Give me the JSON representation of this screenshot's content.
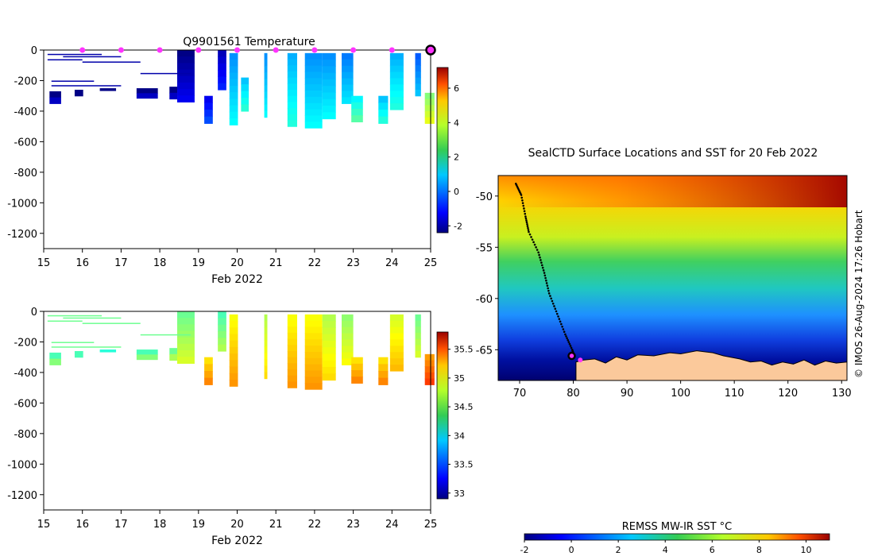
{
  "chart_data": [
    {
      "type": "heatmap",
      "title": "Q9901561  Temperature",
      "xlabel": "Feb 2022",
      "ylabel": "",
      "xlim": [
        15,
        25
      ],
      "ylim": [
        -1300,
        0
      ],
      "x_ticks": [
        15,
        16,
        17,
        18,
        19,
        20,
        21,
        22,
        23,
        24,
        25
      ],
      "y_ticks": [
        0,
        -200,
        -400,
        -600,
        -800,
        -1000,
        -1200
      ],
      "colorbar": {
        "min": -2.4,
        "max": 7.2,
        "ticks": [
          -2,
          0,
          2,
          4,
          6
        ],
        "colormap": "jet"
      },
      "surface_markers": [
        16,
        17,
        18,
        19,
        20,
        21,
        22,
        23,
        24
      ],
      "current_marker": 25,
      "profiles": [
        {
          "x": 15.15,
          "w": 0.3,
          "bottom": -350,
          "top": -270,
          "value": -2.0
        },
        {
          "x": 15.8,
          "w": 0.22,
          "bottom": -300,
          "top": -260,
          "value": -2.0
        },
        {
          "x": 16.45,
          "w": 0.42,
          "bottom": -265,
          "top": -250,
          "value": -2.0
        },
        {
          "x": 17.4,
          "w": 0.55,
          "bottom": -315,
          "top": -250,
          "value": -2.0
        },
        {
          "x": 18.25,
          "w": 0.2,
          "bottom": -320,
          "top": -240,
          "value": -2.0
        },
        {
          "x": 18.45,
          "w": 0.45,
          "bottom": -340,
          "top": 0,
          "value": -2.0
        },
        {
          "x": 19.15,
          "w": 0.22,
          "bottom": -480,
          "top": -300,
          "value": -1.0
        },
        {
          "x": 19.5,
          "w": 0.22,
          "bottom": -260,
          "top": 0,
          "value": -1.5
        },
        {
          "x": 19.8,
          "w": 0.22,
          "bottom": -490,
          "top": -20,
          "value": 0.5
        },
        {
          "x": 20.1,
          "w": 0.2,
          "bottom": -400,
          "top": -180,
          "value": 1.0
        },
        {
          "x": 20.7,
          "w": 0.08,
          "bottom": -440,
          "top": -20,
          "value": 0.5
        },
        {
          "x": 21.3,
          "w": 0.25,
          "bottom": -500,
          "top": -20,
          "value": 0.8
        },
        {
          "x": 21.75,
          "w": 0.45,
          "bottom": -510,
          "top": -20,
          "value": 0.5
        },
        {
          "x": 22.2,
          "w": 0.35,
          "bottom": -450,
          "top": -20,
          "value": 0.5
        },
        {
          "x": 22.7,
          "w": 0.3,
          "bottom": -350,
          "top": -20,
          "value": 0.3
        },
        {
          "x": 22.95,
          "w": 0.3,
          "bottom": -470,
          "top": -300,
          "value": 1.5
        },
        {
          "x": 23.65,
          "w": 0.25,
          "bottom": -480,
          "top": -300,
          "value": 1.0
        },
        {
          "x": 23.95,
          "w": 0.35,
          "bottom": -390,
          "top": -20,
          "value": 0.8
        },
        {
          "x": 24.6,
          "w": 0.15,
          "bottom": -300,
          "top": -20,
          "value": 0.0
        },
        {
          "x": 24.85,
          "w": 0.25,
          "bottom": -480,
          "top": -280,
          "value": 2.8
        }
      ]
    },
    {
      "type": "heatmap",
      "title": "",
      "xlabel": "Feb 2022",
      "ylabel": "",
      "xlim": [
        15,
        25
      ],
      "ylim": [
        -1300,
        0
      ],
      "x_ticks": [
        15,
        16,
        17,
        18,
        19,
        20,
        21,
        22,
        23,
        24,
        25
      ],
      "y_ticks": [
        0,
        -200,
        -400,
        -600,
        -800,
        -1000,
        -1200
      ],
      "colorbar": {
        "min": 32.9,
        "max": 35.8,
        "ticks": [
          33,
          33.5,
          34,
          34.5,
          35,
          35.5
        ],
        "colormap": "jet"
      },
      "profiles": [
        {
          "x": 15.15,
          "w": 0.3,
          "bottom": -350,
          "top": -270,
          "value": 34.3
        },
        {
          "x": 15.8,
          "w": 0.22,
          "bottom": -300,
          "top": -260,
          "value": 34.3
        },
        {
          "x": 16.45,
          "w": 0.42,
          "bottom": -265,
          "top": -250,
          "value": 34.2
        },
        {
          "x": 17.4,
          "w": 0.55,
          "bottom": -315,
          "top": -250,
          "value": 34.3
        },
        {
          "x": 18.25,
          "w": 0.2,
          "bottom": -320,
          "top": -240,
          "value": 34.4
        },
        {
          "x": 18.45,
          "w": 0.45,
          "bottom": -340,
          "top": 0,
          "value": 34.4
        },
        {
          "x": 19.15,
          "w": 0.22,
          "bottom": -480,
          "top": -300,
          "value": 34.9
        },
        {
          "x": 19.5,
          "w": 0.22,
          "bottom": -260,
          "top": 0,
          "value": 34.3
        },
        {
          "x": 19.8,
          "w": 0.22,
          "bottom": -490,
          "top": -20,
          "value": 34.8
        },
        {
          "x": 20.7,
          "w": 0.08,
          "bottom": -440,
          "top": -20,
          "value": 34.6
        },
        {
          "x": 21.3,
          "w": 0.25,
          "bottom": -500,
          "top": -20,
          "value": 34.8
        },
        {
          "x": 21.75,
          "w": 0.45,
          "bottom": -510,
          "top": -20,
          "value": 34.8
        },
        {
          "x": 22.2,
          "w": 0.35,
          "bottom": -450,
          "top": -20,
          "value": 34.6
        },
        {
          "x": 22.7,
          "w": 0.3,
          "bottom": -350,
          "top": -20,
          "value": 34.5
        },
        {
          "x": 22.95,
          "w": 0.3,
          "bottom": -470,
          "top": -300,
          "value": 34.9
        },
        {
          "x": 23.65,
          "w": 0.25,
          "bottom": -480,
          "top": -300,
          "value": 34.9
        },
        {
          "x": 23.95,
          "w": 0.35,
          "bottom": -390,
          "top": -20,
          "value": 34.7
        },
        {
          "x": 24.6,
          "w": 0.15,
          "bottom": -300,
          "top": -20,
          "value": 34.4
        },
        {
          "x": 24.85,
          "w": 0.25,
          "bottom": -480,
          "top": -280,
          "value": 35.1
        }
      ]
    },
    {
      "type": "heatmap",
      "title": "SealCTD Surface Locations and SST for 20 Feb 2022",
      "xlabel": "",
      "ylabel": "",
      "xlim": [
        66,
        131
      ],
      "ylim": [
        -68,
        -48
      ],
      "x_ticks": [
        70,
        80,
        90,
        100,
        110,
        120,
        130
      ],
      "y_ticks": [
        -50,
        -55,
        -60,
        -65
      ],
      "track": [
        [
          69.3,
          -48.8
        ],
        [
          70.3,
          -49.9
        ],
        [
          71.1,
          -52.0
        ],
        [
          71.7,
          -53.5
        ],
        [
          73.5,
          -55.5
        ],
        [
          74.6,
          -57.5
        ],
        [
          75.5,
          -59.5
        ],
        [
          77.0,
          -61.5
        ],
        [
          78.5,
          -63.5
        ],
        [
          79.8,
          -65.0
        ],
        [
          80.3,
          -65.8
        ]
      ],
      "current_position": [
        79.7,
        -65.6
      ],
      "colorbar": {
        "label": "REMSS MW-IR SST °C",
        "min": -2,
        "max": 11,
        "ticks": [
          -2,
          0,
          2,
          4,
          6,
          8,
          10
        ]
      }
    }
  ],
  "credit": "© IMOS 26-Aug-2024 17:26 Hobart",
  "colors": {
    "marker": "#ff33ff",
    "land": "#fbc99b",
    "track": "#000000"
  }
}
